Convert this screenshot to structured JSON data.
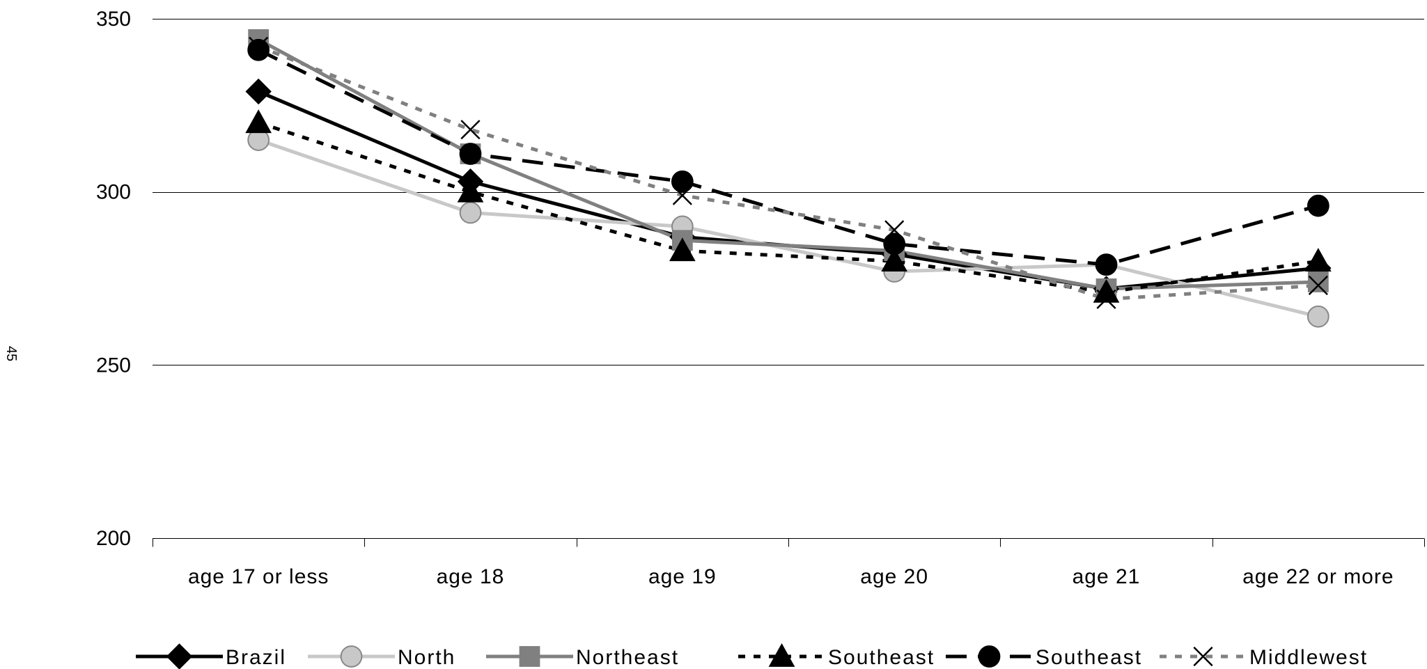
{
  "page": {
    "page_number": "45"
  },
  "chart_data": {
    "type": "line",
    "title": "",
    "xlabel": "",
    "ylabel": "",
    "categories": [
      "age 17 or less",
      "age 18",
      "age 19",
      "age 20",
      "age 21",
      "age 22 or more"
    ],
    "ylim": [
      200,
      350
    ],
    "yticks": [
      200,
      250,
      300,
      350
    ],
    "grid": "horizontal",
    "legend_position": "bottom",
    "series": [
      {
        "name": "Brazil",
        "values": [
          329,
          303,
          287,
          282,
          272,
          278
        ],
        "color": "#000000",
        "dash": "solid",
        "marker": "diamond",
        "marker_fill": "#000000"
      },
      {
        "name": "North",
        "values": [
          315,
          294,
          290,
          277,
          279,
          264
        ],
        "color": "#c8c8c8",
        "dash": "solid",
        "marker": "circle",
        "marker_fill": "#c8c8c8",
        "marker_stroke": "#888888"
      },
      {
        "name": "Northeast",
        "values": [
          344,
          311,
          286,
          283,
          272,
          274
        ],
        "color": "#808080",
        "dash": "solid",
        "marker": "square",
        "marker_fill": "#808080"
      },
      {
        "name": "Southeast",
        "values": [
          320,
          300,
          283,
          280,
          271,
          280
        ],
        "color": "#000000",
        "dash": "dotted",
        "marker": "triangle",
        "marker_fill": "#000000"
      },
      {
        "name": "Southeast",
        "values": [
          341,
          311,
          303,
          285,
          279,
          296
        ],
        "color": "#000000",
        "dash": "longdash",
        "marker": "circle",
        "marker_fill": "#000000"
      },
      {
        "name": "Middlewest",
        "values": [
          342,
          318,
          299,
          289,
          269,
          273
        ],
        "color": "#808080",
        "dash": "dotted",
        "marker": "x",
        "marker_fill": "#000000"
      }
    ]
  }
}
